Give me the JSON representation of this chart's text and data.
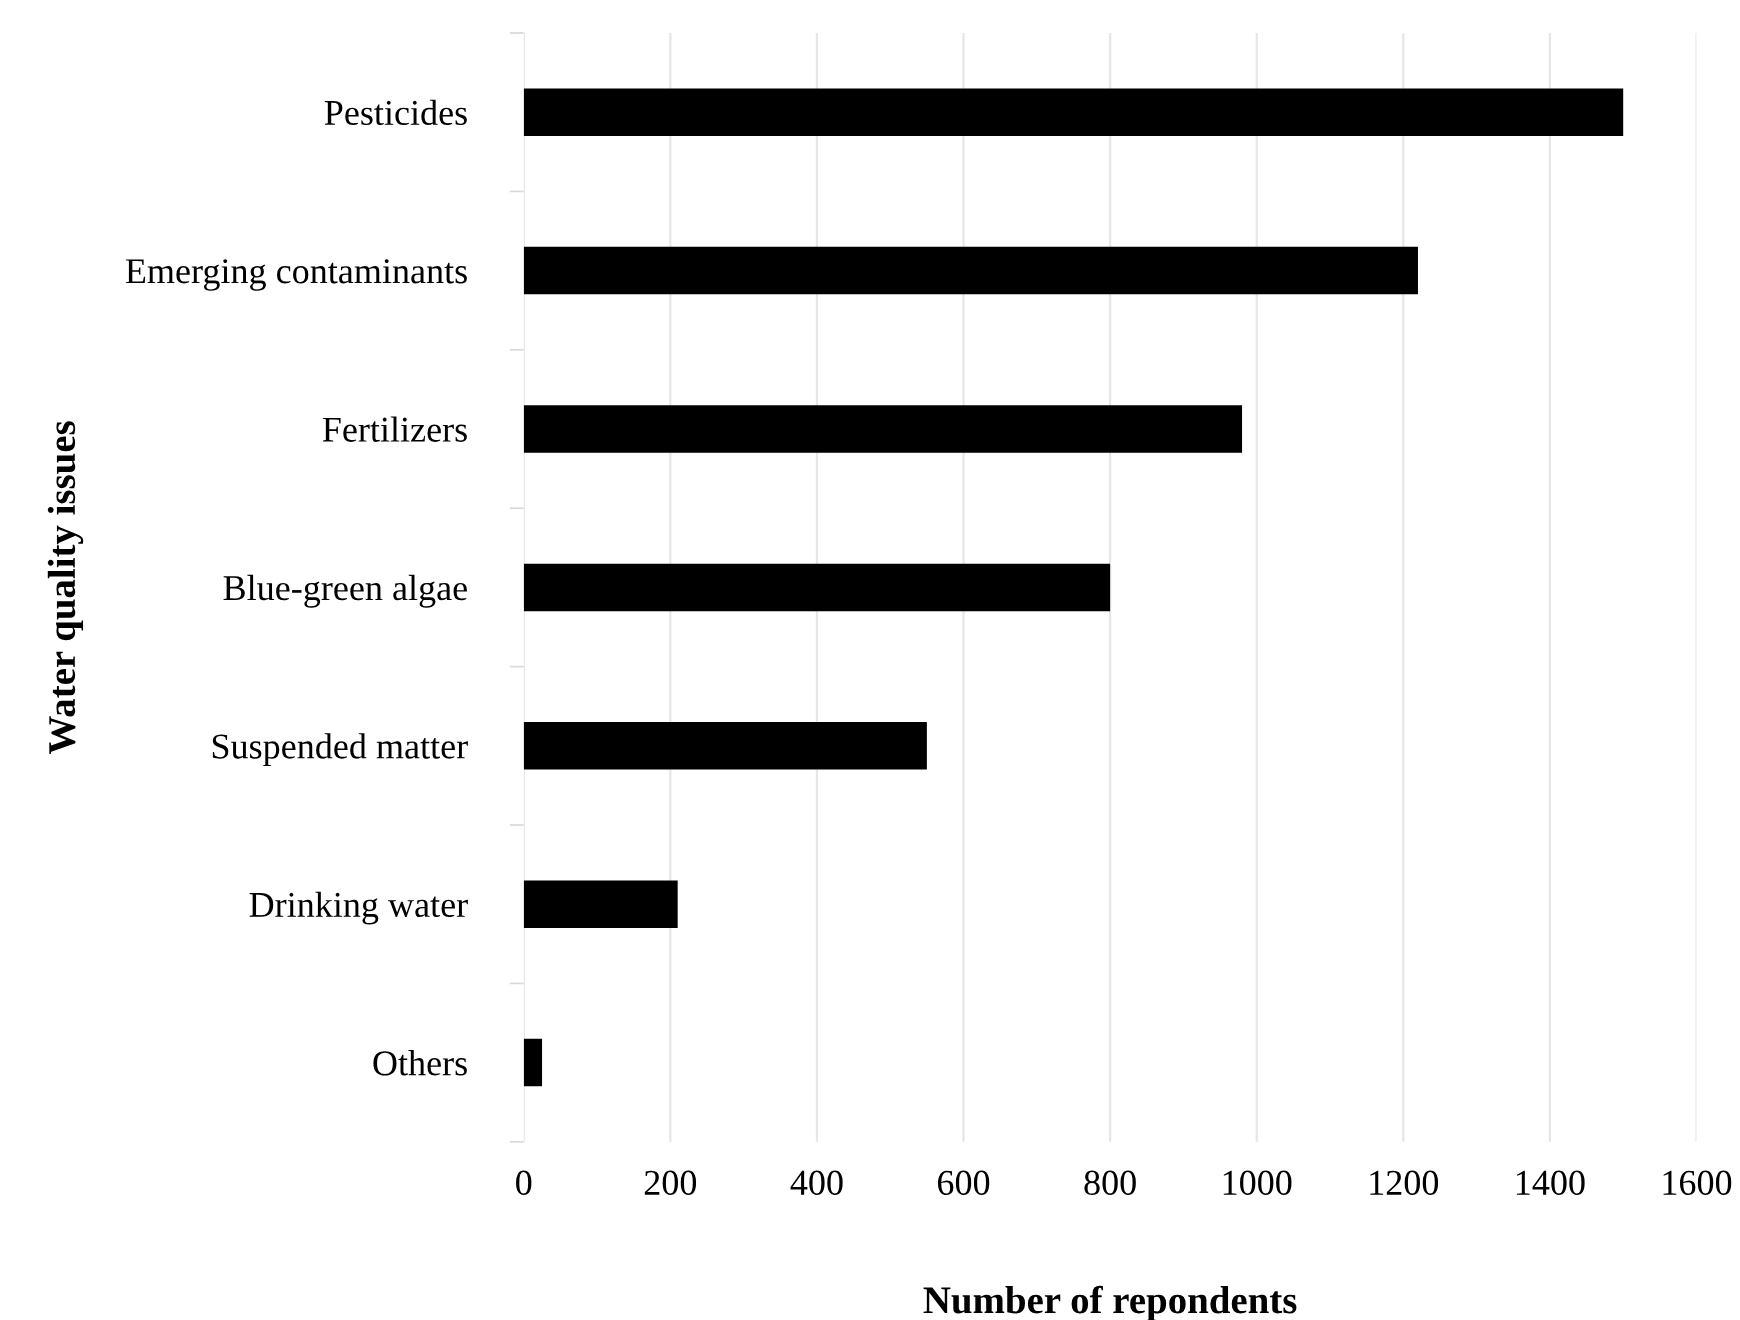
{
  "chart_data": {
    "type": "bar",
    "orientation": "horizontal",
    "xlabel": "Number of repondents",
    "ylabel": "Water quality issues",
    "categories": [
      "Pesticides",
      "Emerging contaminants",
      "Fertilizers",
      "Blue-green algae",
      "Suspended matter",
      "Drinking water",
      "Others"
    ],
    "values": [
      1500,
      1220,
      980,
      800,
      550,
      210,
      25
    ],
    "color": "#000000",
    "xlim": [
      0,
      1600
    ],
    "xticks": [
      0,
      200,
      400,
      600,
      800,
      1000,
      1200,
      1400,
      1600
    ],
    "grid": "x"
  }
}
